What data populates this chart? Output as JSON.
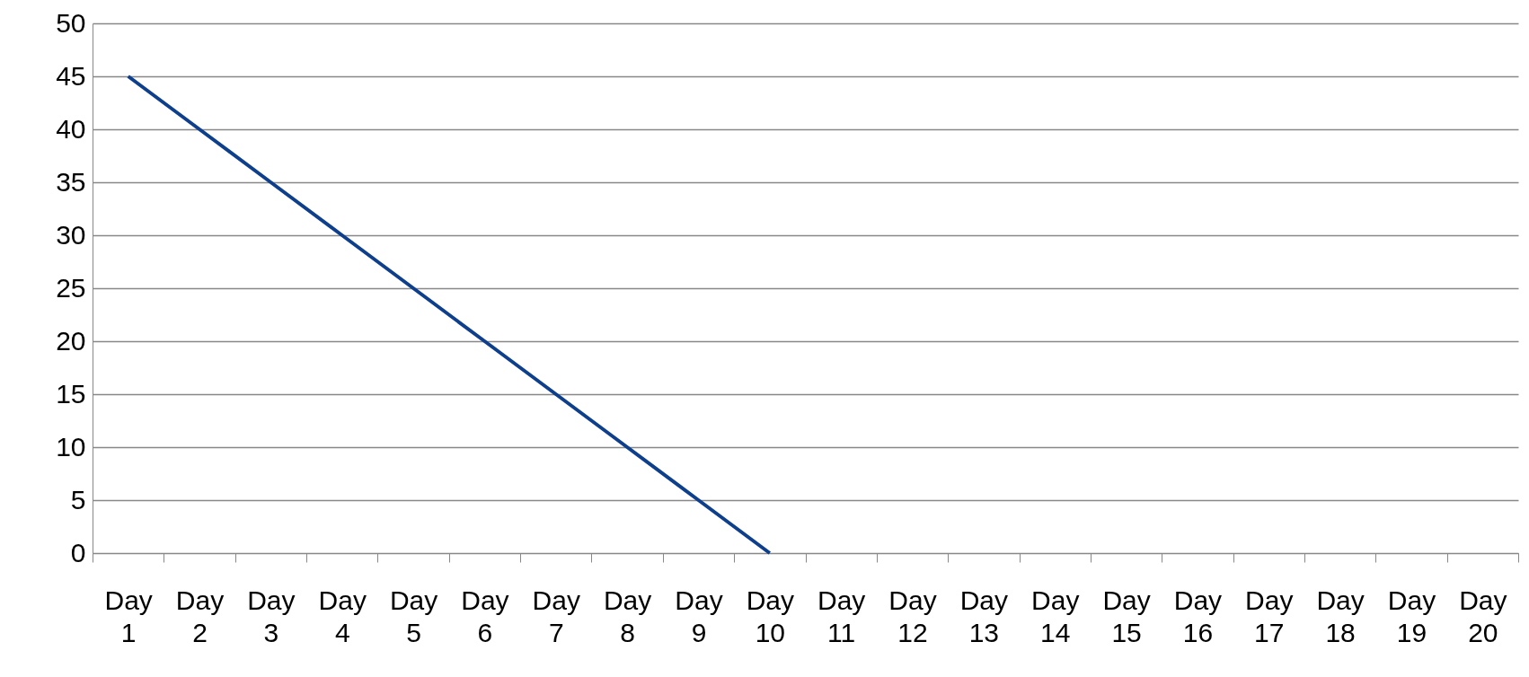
{
  "chart_data": {
    "type": "line",
    "categories": [
      "Day 1",
      "Day 2",
      "Day 3",
      "Day 4",
      "Day 5",
      "Day 6",
      "Day 7",
      "Day 8",
      "Day 9",
      "Day 10",
      "Day 11",
      "Day 12",
      "Day 13",
      "Day 14",
      "Day 15",
      "Day 16",
      "Day 17",
      "Day 18",
      "Day 19",
      "Day 20"
    ],
    "values": [
      45,
      40,
      35,
      30,
      25,
      20,
      15,
      10,
      5,
      0,
      null,
      null,
      null,
      null,
      null,
      null,
      null,
      null,
      null,
      null
    ],
    "color": "#0e3f8c",
    "ylim": [
      0,
      50
    ],
    "yticks": [
      0,
      5,
      10,
      15,
      20,
      25,
      30,
      35,
      40,
      45,
      50
    ],
    "grid": "y",
    "line_style": "solid"
  }
}
